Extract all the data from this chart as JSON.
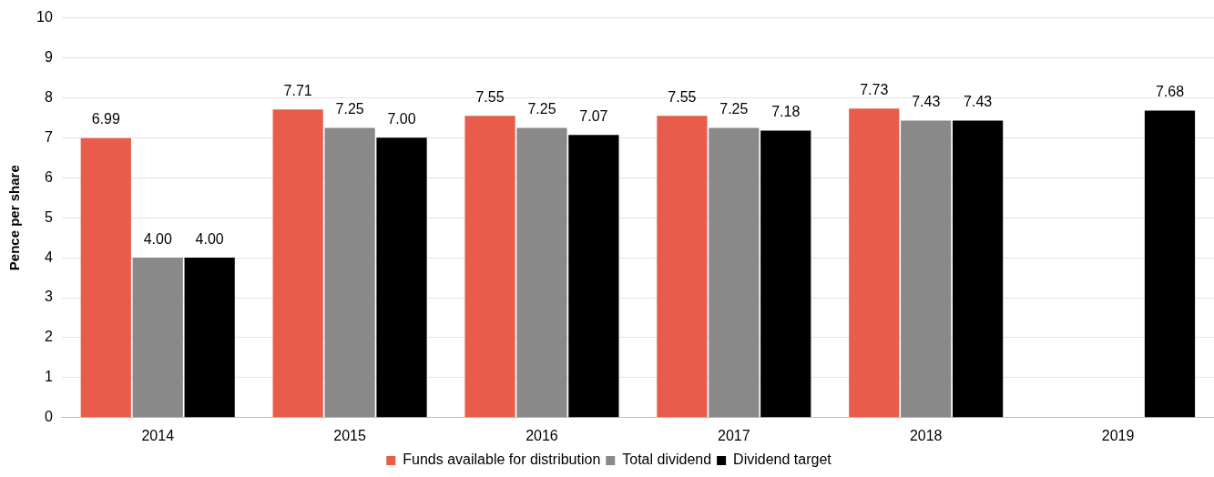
{
  "chart_data": {
    "type": "bar",
    "ylabel": "Pence per share",
    "categories": [
      "2014",
      "2015",
      "2016",
      "2017",
      "2018",
      "2019"
    ],
    "series": [
      {
        "name": "Funds available for distribution",
        "color": "#e85c4c",
        "values": [
          6.99,
          7.71,
          7.55,
          7.55,
          7.73,
          null
        ],
        "value_labels": [
          "6.99",
          "7.71",
          "7.55",
          "7.55",
          "7.73",
          null
        ]
      },
      {
        "name": "Total dividend",
        "color": "#898989",
        "values": [
          4.0,
          7.25,
          7.25,
          7.25,
          7.43,
          null
        ],
        "value_labels": [
          "4.00",
          "7.25",
          "7.25",
          "7.25",
          "7.43",
          null
        ]
      },
      {
        "name": "Dividend target",
        "color": "#000000",
        "values": [
          4.0,
          7.0,
          7.07,
          7.18,
          7.43,
          7.68
        ],
        "value_labels": [
          "4.00",
          "7.00",
          "7.07",
          "7.18",
          "7.43",
          "7.68"
        ]
      }
    ],
    "ylim": [
      0,
      10
    ],
    "yticks": [
      0,
      1,
      2,
      3,
      4,
      5,
      6,
      7,
      8,
      9,
      10
    ],
    "grid": "y",
    "legend": "bottom"
  }
}
